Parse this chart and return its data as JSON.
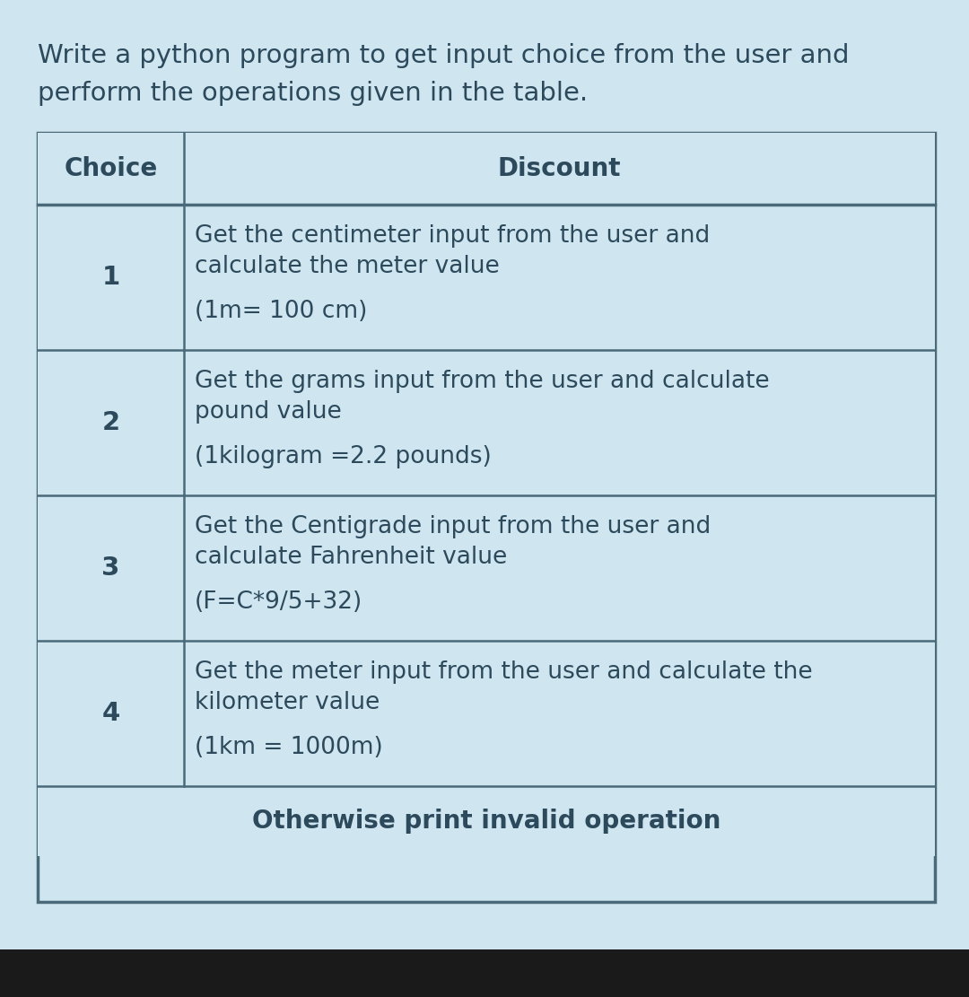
{
  "title_line1": "Write a python program to get input choice from the user and",
  "title_line2": "perform the operations given in the table.",
  "title_fontsize": 21,
  "title_color": "#2c4a5c",
  "bg_color": "#cfe5ef",
  "border_color": "#4a6a7a",
  "header_choice": "Choice",
  "header_discount": "Discount",
  "header_fontsize": 20,
  "header_color": "#2c4a5c",
  "rows": [
    {
      "choice": "1",
      "lines": [
        "Get the centimeter input from the user and",
        "calculate the meter value",
        "",
        "(1m= 100 cm)"
      ]
    },
    {
      "choice": "2",
      "lines": [
        "Get the grams input from the user and calculate",
        "pound value",
        "",
        "(1kilogram =2.2 pounds)"
      ]
    },
    {
      "choice": "3",
      "lines": [
        "Get the Centigrade input from the user and",
        "calculate Fahrenheit value",
        "",
        "(F=C*9/5+32)"
      ]
    },
    {
      "choice": "4",
      "lines": [
        "Get the meter input from the user and calculate the",
        "kilometer value",
        "",
        "(1km = 1000m)"
      ]
    }
  ],
  "footer": "Otherwise print invalid operation",
  "footer_fontsize": 20,
  "footer_color": "#2c4a5c",
  "cell_fontsize": 19,
  "choice_fontsize": 21,
  "text_color": "#2c4a5c",
  "bottom_bar_color": "#1a1a1a"
}
